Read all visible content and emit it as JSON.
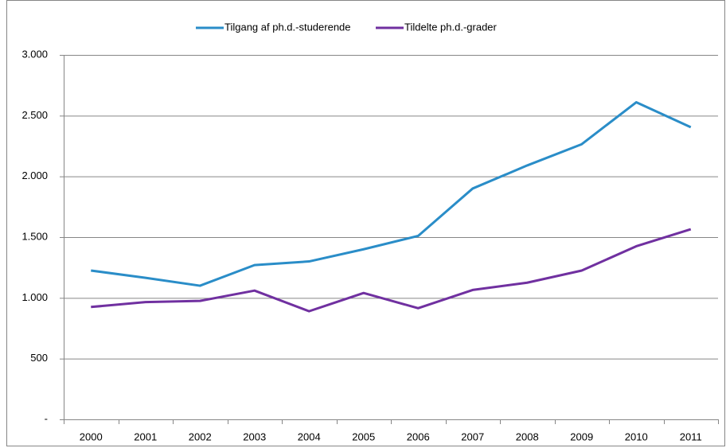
{
  "chart_data": {
    "type": "line",
    "categories": [
      "2000",
      "2001",
      "2002",
      "2003",
      "2004",
      "2005",
      "2006",
      "2007",
      "2008",
      "2009",
      "2010",
      "2011"
    ],
    "series": [
      {
        "name": "Tilgang af ph.d.-studerende",
        "color": "#2a8dc8",
        "values": [
          1225,
          1165,
          1100,
          1270,
          1300,
          1400,
          1510,
          1900,
          2090,
          2265,
          2610,
          2405
        ]
      },
      {
        "name": "Tildelte ph.d.-grader",
        "color": "#7030a0",
        "values": [
          925,
          965,
          975,
          1060,
          890,
          1040,
          915,
          1065,
          1125,
          1225,
          1425,
          1565
        ]
      }
    ],
    "ylim": [
      0,
      3000
    ],
    "yticks": [
      {
        "value": 0,
        "label": "-"
      },
      500,
      {
        "value": 1000,
        "label": "1.000"
      },
      {
        "value": 1500,
        "label": "1.500"
      },
      {
        "value": 2000,
        "label": "2.000"
      },
      {
        "value": 2500,
        "label": "2.500"
      },
      {
        "value": 3000,
        "label": "3.000"
      }
    ],
    "grid": true,
    "legend": "top"
  }
}
